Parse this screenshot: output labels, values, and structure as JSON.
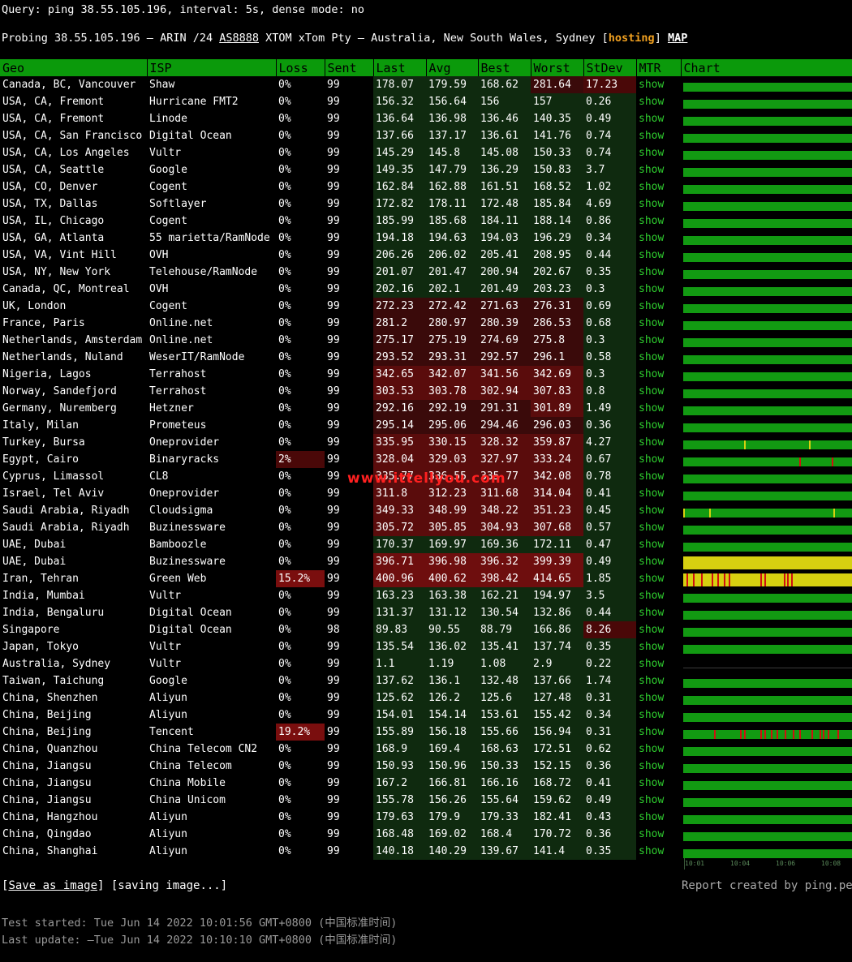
{
  "query_line": "Query: ping 38.55.105.196, interval: 5s, dense mode: no",
  "probe": {
    "prefix": "Probing 38.55.105.196 — ARIN /24 ",
    "asn": "AS8888",
    "middle": " XTOM xTom Pty — Australia, New South Wales, Sydney [",
    "hosting": "hosting",
    "close": "] ",
    "map": "MAP"
  },
  "headers": [
    "Geo",
    "ISP",
    "Loss",
    "Sent",
    "Last",
    "Avg",
    "Best",
    "Worst",
    "StDev",
    "MTR",
    "Chart"
  ],
  "rows": [
    {
      "geo": "Canada, BC, Vancouver",
      "isp": "Shaw",
      "loss": "0%",
      "sent": "99",
      "last": "178.07",
      "avg": "179.59",
      "best": "168.62",
      "worst": "281.64",
      "stdev": "17.23",
      "mtr": "show"
    },
    {
      "geo": "USA, CA, Fremont",
      "isp": "Hurricane FMT2",
      "loss": "0%",
      "sent": "99",
      "last": "156.32",
      "avg": "156.64",
      "best": "156",
      "worst": "157",
      "stdev": "0.26",
      "mtr": "show"
    },
    {
      "geo": "USA, CA, Fremont",
      "isp": "Linode",
      "loss": "0%",
      "sent": "99",
      "last": "136.64",
      "avg": "136.98",
      "best": "136.46",
      "worst": "140.35",
      "stdev": "0.49",
      "mtr": "show"
    },
    {
      "geo": "USA, CA, San Francisco",
      "isp": "Digital Ocean",
      "loss": "0%",
      "sent": "99",
      "last": "137.66",
      "avg": "137.17",
      "best": "136.61",
      "worst": "141.76",
      "stdev": "0.74",
      "mtr": "show"
    },
    {
      "geo": "USA, CA, Los Angeles",
      "isp": "Vultr",
      "loss": "0%",
      "sent": "99",
      "last": "145.29",
      "avg": "145.8",
      "best": "145.08",
      "worst": "150.33",
      "stdev": "0.74",
      "mtr": "show"
    },
    {
      "geo": "USA, CA, Seattle",
      "isp": "Google",
      "loss": "0%",
      "sent": "99",
      "last": "149.35",
      "avg": "147.79",
      "best": "136.29",
      "worst": "150.83",
      "stdev": "3.7",
      "mtr": "show"
    },
    {
      "geo": "USA, CO, Denver",
      "isp": "Cogent",
      "loss": "0%",
      "sent": "99",
      "last": "162.84",
      "avg": "162.88",
      "best": "161.51",
      "worst": "168.52",
      "stdev": "1.02",
      "mtr": "show"
    },
    {
      "geo": "USA, TX, Dallas",
      "isp": "Softlayer",
      "loss": "0%",
      "sent": "99",
      "last": "172.82",
      "avg": "178.11",
      "best": "172.48",
      "worst": "185.84",
      "stdev": "4.69",
      "mtr": "show"
    },
    {
      "geo": "USA, IL, Chicago",
      "isp": "Cogent",
      "loss": "0%",
      "sent": "99",
      "last": "185.99",
      "avg": "185.68",
      "best": "184.11",
      "worst": "188.14",
      "stdev": "0.86",
      "mtr": "show"
    },
    {
      "geo": "USA, GA, Atlanta",
      "isp": "55 marietta/RamNode",
      "loss": "0%",
      "sent": "99",
      "last": "194.18",
      "avg": "194.63",
      "best": "194.03",
      "worst": "196.29",
      "stdev": "0.34",
      "mtr": "show"
    },
    {
      "geo": "USA, VA, Vint Hill",
      "isp": "OVH",
      "loss": "0%",
      "sent": "99",
      "last": "206.26",
      "avg": "206.02",
      "best": "205.41",
      "worst": "208.95",
      "stdev": "0.44",
      "mtr": "show"
    },
    {
      "geo": "USA, NY, New York",
      "isp": "Telehouse/RamNode",
      "loss": "0%",
      "sent": "99",
      "last": "201.07",
      "avg": "201.47",
      "best": "200.94",
      "worst": "202.67",
      "stdev": "0.35",
      "mtr": "show"
    },
    {
      "geo": "Canada, QC, Montreal",
      "isp": "OVH",
      "loss": "0%",
      "sent": "99",
      "last": "202.16",
      "avg": "202.1",
      "best": "201.49",
      "worst": "203.23",
      "stdev": "0.3",
      "mtr": "show"
    },
    {
      "geo": "UK, London",
      "isp": "Cogent",
      "loss": "0%",
      "sent": "99",
      "last": "272.23",
      "avg": "272.42",
      "best": "271.63",
      "worst": "276.31",
      "stdev": "0.69",
      "mtr": "show"
    },
    {
      "geo": "France, Paris",
      "isp": "Online.net",
      "loss": "0%",
      "sent": "99",
      "last": "281.2",
      "avg": "280.97",
      "best": "280.39",
      "worst": "286.53",
      "stdev": "0.68",
      "mtr": "show"
    },
    {
      "geo": "Netherlands, Amsterdam",
      "isp": "Online.net",
      "loss": "0%",
      "sent": "99",
      "last": "275.17",
      "avg": "275.19",
      "best": "274.69",
      "worst": "275.8",
      "stdev": "0.3",
      "mtr": "show"
    },
    {
      "geo": "Netherlands, Nuland",
      "isp": "WeserIT/RamNode",
      "loss": "0%",
      "sent": "99",
      "last": "293.52",
      "avg": "293.31",
      "best": "292.57",
      "worst": "296.1",
      "stdev": "0.58",
      "mtr": "show"
    },
    {
      "geo": "Nigeria, Lagos",
      "isp": "Terrahost",
      "loss": "0%",
      "sent": "99",
      "last": "342.65",
      "avg": "342.07",
      "best": "341.56",
      "worst": "342.69",
      "stdev": "0.3",
      "mtr": "show"
    },
    {
      "geo": "Norway, Sandefjord",
      "isp": "Terrahost",
      "loss": "0%",
      "sent": "99",
      "last": "303.53",
      "avg": "303.78",
      "best": "302.94",
      "worst": "307.83",
      "stdev": "0.8",
      "mtr": "show"
    },
    {
      "geo": "Germany, Nuremberg",
      "isp": "Hetzner",
      "loss": "0%",
      "sent": "99",
      "last": "292.16",
      "avg": "292.19",
      "best": "291.31",
      "worst": "301.89",
      "stdev": "1.49",
      "mtr": "show"
    },
    {
      "geo": "Italy, Milan",
      "isp": "Prometeus",
      "loss": "0%",
      "sent": "99",
      "last": "295.14",
      "avg": "295.06",
      "best": "294.46",
      "worst": "296.03",
      "stdev": "0.36",
      "mtr": "show"
    },
    {
      "geo": "Turkey, Bursa",
      "isp": "Oneprovider",
      "loss": "0%",
      "sent": "99",
      "last": "335.95",
      "avg": "330.15",
      "best": "328.32",
      "worst": "359.87",
      "stdev": "4.27",
      "mtr": "show"
    },
    {
      "geo": "Egypt, Cairo",
      "isp": "Binaryracks",
      "loss": "2%",
      "sent": "99",
      "last": "328.04",
      "avg": "329.03",
      "best": "327.97",
      "worst": "333.24",
      "stdev": "0.67",
      "mtr": "show"
    },
    {
      "geo": "Cyprus, Limassol",
      "isp": "CL8",
      "loss": "0%",
      "sent": "99",
      "last": "335.77",
      "avg": "336.55",
      "best": "335.77",
      "worst": "342.08",
      "stdev": "0.78",
      "mtr": "show"
    },
    {
      "geo": "Israel, Tel Aviv",
      "isp": "Oneprovider",
      "loss": "0%",
      "sent": "99",
      "last": "311.8",
      "avg": "312.23",
      "best": "311.68",
      "worst": "314.04",
      "stdev": "0.41",
      "mtr": "show"
    },
    {
      "geo": "Saudi Arabia, Riyadh",
      "isp": "Cloudsigma",
      "loss": "0%",
      "sent": "99",
      "last": "349.33",
      "avg": "348.99",
      "best": "348.22",
      "worst": "351.23",
      "stdev": "0.45",
      "mtr": "show"
    },
    {
      "geo": "Saudi Arabia, Riyadh",
      "isp": "Buzinessware",
      "loss": "0%",
      "sent": "99",
      "last": "305.72",
      "avg": "305.85",
      "best": "304.93",
      "worst": "307.68",
      "stdev": "0.57",
      "mtr": "show"
    },
    {
      "geo": "UAE, Dubai",
      "isp": "Bamboozle",
      "loss": "0%",
      "sent": "99",
      "last": "170.37",
      "avg": "169.97",
      "best": "169.36",
      "worst": "172.11",
      "stdev": "0.47",
      "mtr": "show"
    },
    {
      "geo": "UAE, Dubai",
      "isp": "Buzinessware",
      "loss": "0%",
      "sent": "99",
      "last": "396.71",
      "avg": "396.98",
      "best": "396.32",
      "worst": "399.39",
      "stdev": "0.49",
      "mtr": "show"
    },
    {
      "geo": "Iran, Tehran",
      "isp": "Green Web",
      "loss": "15.2%",
      "sent": "99",
      "last": "400.96",
      "avg": "400.62",
      "best": "398.42",
      "worst": "414.65",
      "stdev": "1.85",
      "mtr": "show"
    },
    {
      "geo": "India, Mumbai",
      "isp": "Vultr",
      "loss": "0%",
      "sent": "99",
      "last": "163.23",
      "avg": "163.38",
      "best": "162.21",
      "worst": "194.97",
      "stdev": "3.5",
      "mtr": "show"
    },
    {
      "geo": "India, Bengaluru",
      "isp": "Digital Ocean",
      "loss": "0%",
      "sent": "99",
      "last": "131.37",
      "avg": "131.12",
      "best": "130.54",
      "worst": "132.86",
      "stdev": "0.44",
      "mtr": "show"
    },
    {
      "geo": "Singapore",
      "isp": "Digital Ocean",
      "loss": "0%",
      "sent": "98",
      "last": "89.83",
      "avg": "90.55",
      "best": "88.79",
      "worst": "166.86",
      "stdev": "8.26",
      "mtr": "show"
    },
    {
      "geo": "Japan, Tokyo",
      "isp": "Vultr",
      "loss": "0%",
      "sent": "99",
      "last": "135.54",
      "avg": "136.02",
      "best": "135.41",
      "worst": "137.74",
      "stdev": "0.35",
      "mtr": "show"
    },
    {
      "geo": "Australia, Sydney",
      "isp": "Vultr",
      "loss": "0%",
      "sent": "99",
      "last": "1.1",
      "avg": "1.19",
      "best": "1.08",
      "worst": "2.9",
      "stdev": "0.22",
      "mtr": "show"
    },
    {
      "geo": "Taiwan, Taichung",
      "isp": "Google",
      "loss": "0%",
      "sent": "99",
      "last": "137.62",
      "avg": "136.1",
      "best": "132.48",
      "worst": "137.66",
      "stdev": "1.74",
      "mtr": "show"
    },
    {
      "geo": "China, Shenzhen",
      "isp": "Aliyun",
      "loss": "0%",
      "sent": "99",
      "last": "125.62",
      "avg": "126.2",
      "best": "125.6",
      "worst": "127.48",
      "stdev": "0.31",
      "mtr": "show"
    },
    {
      "geo": "China, Beijing",
      "isp": "Aliyun",
      "loss": "0%",
      "sent": "99",
      "last": "154.01",
      "avg": "154.14",
      "best": "153.61",
      "worst": "155.42",
      "stdev": "0.34",
      "mtr": "show"
    },
    {
      "geo": "China, Beijing",
      "isp": "Tencent",
      "loss": "19.2%",
      "sent": "99",
      "last": "155.89",
      "avg": "156.18",
      "best": "155.66",
      "worst": "156.94",
      "stdev": "0.31",
      "mtr": "show"
    },
    {
      "geo": "China, Quanzhou",
      "isp": "China Telecom CN2",
      "loss": "0%",
      "sent": "99",
      "last": "168.9",
      "avg": "169.4",
      "best": "168.63",
      "worst": "172.51",
      "stdev": "0.62",
      "mtr": "show"
    },
    {
      "geo": "China, Jiangsu",
      "isp": "China Telecom",
      "loss": "0%",
      "sent": "99",
      "last": "150.93",
      "avg": "150.96",
      "best": "150.33",
      "worst": "152.15",
      "stdev": "0.36",
      "mtr": "show"
    },
    {
      "geo": "China, Jiangsu",
      "isp": "China Mobile",
      "loss": "0%",
      "sent": "99",
      "last": "167.2",
      "avg": "166.81",
      "best": "166.16",
      "worst": "168.72",
      "stdev": "0.41",
      "mtr": "show"
    },
    {
      "geo": "China, Jiangsu",
      "isp": "China Unicom",
      "loss": "0%",
      "sent": "99",
      "last": "155.78",
      "avg": "156.26",
      "best": "155.64",
      "worst": "159.62",
      "stdev": "0.49",
      "mtr": "show"
    },
    {
      "geo": "China, Hangzhou",
      "isp": "Aliyun",
      "loss": "0%",
      "sent": "99",
      "last": "179.63",
      "avg": "179.9",
      "best": "179.33",
      "worst": "182.41",
      "stdev": "0.43",
      "mtr": "show"
    },
    {
      "geo": "China, Qingdao",
      "isp": "Aliyun",
      "loss": "0%",
      "sent": "99",
      "last": "168.48",
      "avg": "169.02",
      "best": "168.4",
      "worst": "170.72",
      "stdev": "0.36",
      "mtr": "show"
    },
    {
      "geo": "China, Shanghai",
      "isp": "Aliyun",
      "loss": "0%",
      "sent": "99",
      "last": "140.18",
      "avg": "140.29",
      "best": "139.67",
      "worst": "141.4",
      "stdev": "0.35",
      "mtr": "show"
    }
  ],
  "chart_axis": [
    "10:01",
    "10:04",
    "10:06",
    "10:08"
  ],
  "watermark": "www.ittellyou.com",
  "footer": {
    "save_open": "[",
    "save_link": "Save as image",
    "save_close": "] [saving image...]",
    "report": "Report created by ping.pe",
    "started": "Test started: Tue Jun 14 2022 10:01:56 GMT+0800 (中国标准时间)",
    "updated": "Last update: —Tue Jun 14 2022 10:10:10 GMT+0800 (中国标准时间)"
  },
  "colors": {
    "header_green": "#0b9a0b",
    "bar_green": "#129a12",
    "bar_yellow": "#d6d010",
    "loss_red": "#d01010",
    "mtr_link": "#2ecc2e",
    "hosting_orange": "#f0a020"
  }
}
